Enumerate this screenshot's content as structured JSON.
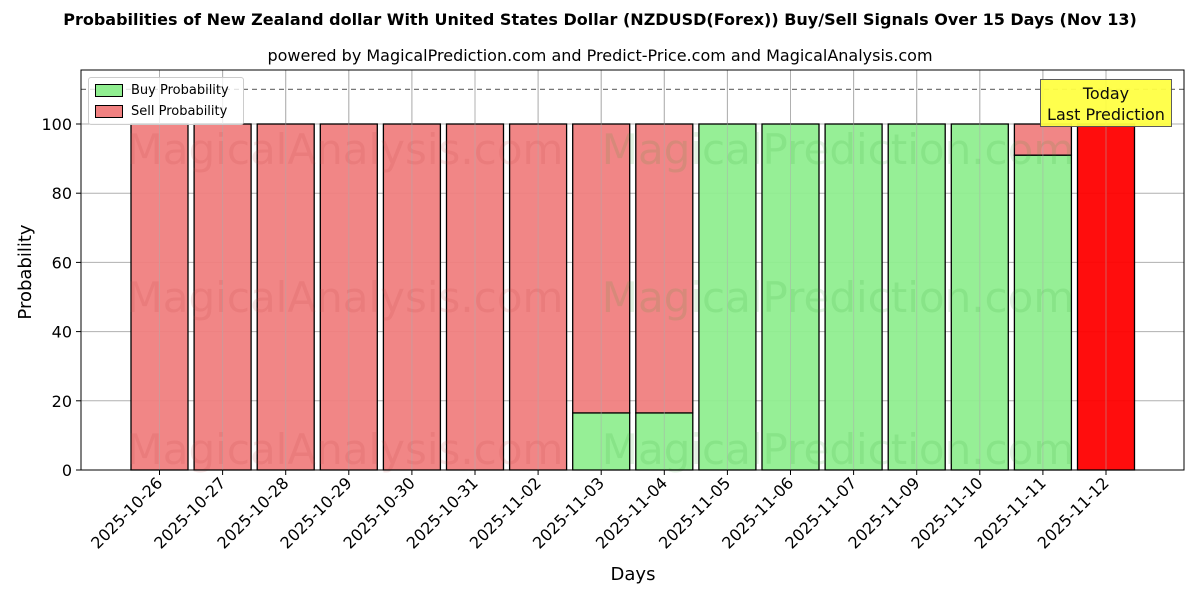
{
  "header": {
    "title": "Probabilities of New Zealand dollar With United States Dollar (NZDUSD(Forex)) Buy/Sell Signals Over 15 Days (Nov 13)",
    "subtitle": "powered by MagicalPrediction.com and Predict-Price.com and MagicalAnalysis.com"
  },
  "legend": {
    "buy_label": "Buy Probability",
    "sell_label": "Sell Probability"
  },
  "annotation": {
    "line1": "Today",
    "line2": "Last Prediction"
  },
  "watermarks": [
    "MagicalAnalysis.com",
    "MagicalPrediction.com"
  ],
  "colors": {
    "buy": "#90ee90",
    "sell": "#f08080",
    "today": "#ff0000",
    "annotation_bg": "#ffff44"
  },
  "chart_data": {
    "type": "bar",
    "stacked": true,
    "title": "Probabilities of New Zealand dollar With United States Dollar (NZDUSD(Forex)) Buy/Sell Signals Over 15 Days (Nov 13)",
    "subtitle": "powered by MagicalPrediction.com and Predict-Price.com and MagicalAnalysis.com",
    "xlabel": "Days",
    "ylabel": "Probability",
    "ylim": [
      0,
      115
    ],
    "yticks": [
      0,
      20,
      40,
      60,
      80,
      100
    ],
    "reference_line": 110,
    "grid": true,
    "legend_position": "upper left",
    "categories": [
      "2025-10-26",
      "2025-10-27",
      "2025-10-28",
      "2025-10-29",
      "2025-10-30",
      "2025-10-31",
      "2025-11-02",
      "2025-11-03",
      "2025-11-04",
      "2025-11-05",
      "2025-11-06",
      "2025-11-07",
      "2025-11-09",
      "2025-11-10",
      "2025-11-11",
      "2025-11-12"
    ],
    "series": [
      {
        "name": "Buy Probability",
        "values": [
          0,
          0,
          0,
          0,
          0,
          0,
          0,
          16.5,
          16.5,
          100,
          100,
          100,
          100,
          100,
          91,
          0
        ]
      },
      {
        "name": "Sell Probability",
        "values": [
          100,
          100,
          100,
          100,
          100,
          100,
          100,
          83.5,
          83.5,
          0,
          0,
          0,
          0,
          0,
          9,
          100
        ]
      }
    ],
    "annotations": [
      {
        "text": "Today\nLast Prediction",
        "category": "2025-11-12",
        "note": "last bar highlighted red (sell 100)"
      }
    ]
  }
}
